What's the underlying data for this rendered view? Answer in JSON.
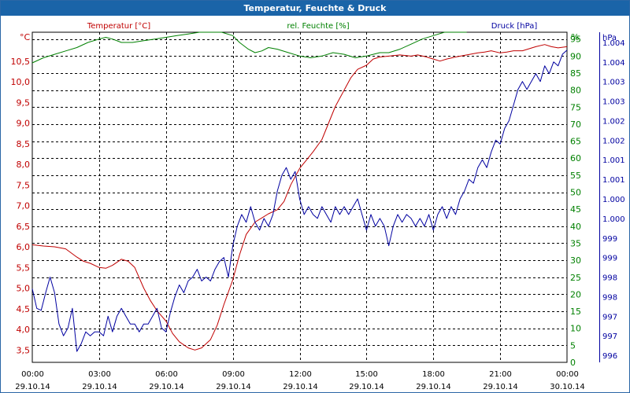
{
  "window": {
    "title": "Temperatur, Feuchte & Druck"
  },
  "chart_data": {
    "type": "line",
    "title": "Temperatur, Feuchte & Druck",
    "grid": true,
    "colors": {
      "temperature": "#c00000",
      "humidity": "#008000",
      "pressure": "#0000a0",
      "grid": "#000000",
      "title_bg": "#1a64a8"
    },
    "x_axis": {
      "ticks": [
        {
          "hours": 0,
          "time": "00:00",
          "date": "29.10.14"
        },
        {
          "hours": 3,
          "time": "03:00",
          "date": "29.10.14"
        },
        {
          "hours": 6,
          "time": "06:00",
          "date": "29.10.14"
        },
        {
          "hours": 9,
          "time": "09:00",
          "date": "29.10.14"
        },
        {
          "hours": 12,
          "time": "12:00",
          "date": "29.10.14"
        },
        {
          "hours": 15,
          "time": "15:00",
          "date": "29.10.14"
        },
        {
          "hours": 18,
          "time": "18:00",
          "date": "29.10.14"
        },
        {
          "hours": 21,
          "time": "21:00",
          "date": "29.10.14"
        },
        {
          "hours": 24,
          "time": "00:00",
          "date": "30.10.14"
        }
      ]
    },
    "axes": {
      "temperature": {
        "label": "Temperatur [°C]",
        "unit": "°C",
        "range": [
          3.2,
          11.2
        ],
        "ticks": [
          3.5,
          4.0,
          4.5,
          5.0,
          5.5,
          6.0,
          6.5,
          7.0,
          7.5,
          8.0,
          8.5,
          9.0,
          9.5,
          10.0,
          10.5
        ],
        "tick_labels": [
          "3,5",
          "4,0",
          "4,5",
          "5,0",
          "5,5",
          "6,0",
          "6,5",
          "7,0",
          "7,5",
          "8,0",
          "8,5",
          "9,0",
          "9,5",
          "10,0",
          "10,5"
        ]
      },
      "humidity": {
        "label": "rel. Feuchte [%]",
        "unit": "%",
        "range": [
          0,
          97
        ],
        "ticks": [
          0,
          5,
          10,
          15,
          20,
          25,
          30,
          35,
          40,
          45,
          50,
          55,
          60,
          65,
          70,
          75,
          80,
          85,
          90,
          95
        ],
        "tick_labels": [
          "0",
          "5",
          "10",
          "15",
          "20",
          "25",
          "30",
          "35",
          "40",
          "45",
          "50",
          "55",
          "60",
          "65",
          "70",
          "75",
          "80",
          "85",
          "90",
          "95"
        ]
      },
      "pressure": {
        "label": "Druck [hPa]",
        "unit": "hPa",
        "range": [
          995.82,
          1004.26
        ],
        "ticks": [
          996.0,
          996.5,
          997.0,
          997.5,
          998.0,
          998.5,
          999.0,
          999.5,
          1000.0,
          1000.5,
          1001.0,
          1001.5,
          1002.0,
          1002.5,
          1003.0,
          1003.5,
          1004.0
        ],
        "tick_labels": [
          "996",
          "997",
          "997",
          "998",
          "998",
          "999",
          "999",
          "1.000",
          "1.000",
          "1.001",
          "1.001",
          "1.002",
          "1.002",
          "1.003",
          "1.003",
          "1.004",
          "1.004"
        ]
      }
    },
    "series": [
      {
        "name": "Temperatur [°C]",
        "axis": "temperature",
        "points": [
          [
            0,
            6.05
          ],
          [
            0.5,
            6.02
          ],
          [
            1,
            6.0
          ],
          [
            1.5,
            5.95
          ],
          [
            2,
            5.75
          ],
          [
            2.3,
            5.65
          ],
          [
            2.6,
            5.6
          ],
          [
            3,
            5.5
          ],
          [
            3.3,
            5.48
          ],
          [
            3.6,
            5.55
          ],
          [
            4,
            5.7
          ],
          [
            4.3,
            5.65
          ],
          [
            4.6,
            5.5
          ],
          [
            5,
            5.0
          ],
          [
            5.3,
            4.7
          ],
          [
            5.6,
            4.45
          ],
          [
            6,
            4.2
          ],
          [
            6.3,
            3.9
          ],
          [
            6.6,
            3.7
          ],
          [
            7,
            3.55
          ],
          [
            7.3,
            3.5
          ],
          [
            7.6,
            3.55
          ],
          [
            8,
            3.75
          ],
          [
            8.3,
            4.1
          ],
          [
            8.6,
            4.6
          ],
          [
            9,
            5.2
          ],
          [
            9.3,
            5.8
          ],
          [
            9.6,
            6.3
          ],
          [
            10,
            6.6
          ],
          [
            10.3,
            6.7
          ],
          [
            10.6,
            6.8
          ],
          [
            11,
            6.9
          ],
          [
            11.3,
            7.1
          ],
          [
            11.6,
            7.5
          ],
          [
            12,
            7.9
          ],
          [
            12.3,
            8.1
          ],
          [
            12.6,
            8.3
          ],
          [
            13,
            8.6
          ],
          [
            13.3,
            9.0
          ],
          [
            13.6,
            9.4
          ],
          [
            14,
            9.8
          ],
          [
            14.3,
            10.1
          ],
          [
            14.6,
            10.3
          ],
          [
            15,
            10.4
          ],
          [
            15.3,
            10.55
          ],
          [
            15.6,
            10.6
          ],
          [
            16,
            10.62
          ],
          [
            16.5,
            10.65
          ],
          [
            17,
            10.62
          ],
          [
            17.3,
            10.65
          ],
          [
            17.7,
            10.6
          ],
          [
            18,
            10.55
          ],
          [
            18.3,
            10.5
          ],
          [
            18.6,
            10.55
          ],
          [
            19,
            10.6
          ],
          [
            19.5,
            10.65
          ],
          [
            20,
            10.7
          ],
          [
            20.3,
            10.72
          ],
          [
            20.6,
            10.75
          ],
          [
            21,
            10.7
          ],
          [
            21.3,
            10.72
          ],
          [
            21.6,
            10.75
          ],
          [
            22,
            10.75
          ],
          [
            22.3,
            10.8
          ],
          [
            22.6,
            10.85
          ],
          [
            23,
            10.9
          ],
          [
            23.3,
            10.85
          ],
          [
            23.6,
            10.82
          ],
          [
            24,
            10.85
          ]
        ]
      },
      {
        "name": "rel. Feuchte [%]",
        "axis": "humidity",
        "points": [
          [
            0,
            88
          ],
          [
            0.5,
            89.5
          ],
          [
            1,
            90.5
          ],
          [
            1.5,
            91.5
          ],
          [
            2,
            92.5
          ],
          [
            2.5,
            94
          ],
          [
            3,
            95
          ],
          [
            3.3,
            95.5
          ],
          [
            3.6,
            95
          ],
          [
            4,
            94
          ],
          [
            4.5,
            94
          ],
          [
            5,
            94.5
          ],
          [
            5.5,
            95
          ],
          [
            6,
            95.5
          ],
          [
            6.5,
            96
          ],
          [
            7,
            96.5
          ],
          [
            7.5,
            97
          ],
          [
            8,
            97
          ],
          [
            8.5,
            97
          ],
          [
            9,
            96
          ],
          [
            9.3,
            94
          ],
          [
            9.7,
            92
          ],
          [
            10,
            91
          ],
          [
            10.3,
            91.5
          ],
          [
            10.6,
            92.5
          ],
          [
            11,
            92
          ],
          [
            11.5,
            91
          ],
          [
            12,
            90
          ],
          [
            12.5,
            89.5
          ],
          [
            13,
            90
          ],
          [
            13.5,
            91
          ],
          [
            14,
            90.5
          ],
          [
            14.5,
            89.5
          ],
          [
            15,
            90
          ],
          [
            15.3,
            90.5
          ],
          [
            15.6,
            91
          ],
          [
            16,
            91
          ],
          [
            16.5,
            92
          ],
          [
            17,
            93.5
          ],
          [
            17.5,
            95
          ],
          [
            18,
            96
          ],
          [
            18.5,
            97
          ],
          [
            19,
            97
          ],
          [
            19.5,
            97
          ]
        ]
      },
      {
        "name": "Druck [hPa]",
        "axis": "pressure",
        "points": [
          [
            0,
            997.7
          ],
          [
            0.2,
            997.2
          ],
          [
            0.4,
            997.15
          ],
          [
            0.6,
            997.6
          ],
          [
            0.8,
            998.0
          ],
          [
            1.0,
            997.6
          ],
          [
            1.2,
            996.8
          ],
          [
            1.4,
            996.5
          ],
          [
            1.6,
            996.7
          ],
          [
            1.8,
            997.2
          ],
          [
            2.0,
            996.1
          ],
          [
            2.2,
            996.3
          ],
          [
            2.4,
            996.6
          ],
          [
            2.6,
            996.5
          ],
          [
            2.8,
            996.6
          ],
          [
            3.0,
            996.6
          ],
          [
            3.2,
            996.5
          ],
          [
            3.4,
            997.0
          ],
          [
            3.6,
            996.6
          ],
          [
            3.8,
            997.0
          ],
          [
            4.0,
            997.2
          ],
          [
            4.2,
            997.0
          ],
          [
            4.4,
            996.8
          ],
          [
            4.6,
            996.8
          ],
          [
            4.8,
            996.6
          ],
          [
            5.0,
            996.8
          ],
          [
            5.2,
            996.8
          ],
          [
            5.4,
            997.0
          ],
          [
            5.6,
            997.2
          ],
          [
            5.8,
            996.7
          ],
          [
            6.0,
            996.6
          ],
          [
            6.2,
            997.1
          ],
          [
            6.4,
            997.5
          ],
          [
            6.6,
            997.8
          ],
          [
            6.8,
            997.6
          ],
          [
            7.0,
            997.9
          ],
          [
            7.2,
            998.0
          ],
          [
            7.4,
            998.2
          ],
          [
            7.6,
            997.9
          ],
          [
            7.8,
            998.0
          ],
          [
            8.0,
            997.9
          ],
          [
            8.2,
            998.2
          ],
          [
            8.4,
            998.4
          ],
          [
            8.6,
            998.5
          ],
          [
            8.8,
            998.0
          ],
          [
            9.0,
            998.8
          ],
          [
            9.2,
            999.3
          ],
          [
            9.4,
            999.6
          ],
          [
            9.6,
            999.4
          ],
          [
            9.8,
            999.8
          ],
          [
            10.0,
            999.4
          ],
          [
            10.2,
            999.2
          ],
          [
            10.4,
            999.5
          ],
          [
            10.6,
            999.3
          ],
          [
            10.8,
            999.6
          ],
          [
            11.0,
            1000.2
          ],
          [
            11.2,
            1000.6
          ],
          [
            11.4,
            1000.8
          ],
          [
            11.6,
            1000.5
          ],
          [
            11.8,
            1000.7
          ],
          [
            12.0,
            1000.0
          ],
          [
            12.2,
            999.6
          ],
          [
            12.4,
            999.8
          ],
          [
            12.6,
            999.6
          ],
          [
            12.8,
            999.5
          ],
          [
            13.0,
            999.8
          ],
          [
            13.2,
            999.6
          ],
          [
            13.4,
            999.4
          ],
          [
            13.6,
            999.8
          ],
          [
            13.8,
            999.6
          ],
          [
            14.0,
            999.8
          ],
          [
            14.2,
            999.6
          ],
          [
            14.4,
            999.8
          ],
          [
            14.6,
            1000.0
          ],
          [
            14.8,
            999.6
          ],
          [
            15.0,
            999.2
          ],
          [
            15.2,
            999.6
          ],
          [
            15.4,
            999.3
          ],
          [
            15.6,
            999.5
          ],
          [
            15.8,
            999.3
          ],
          [
            16.0,
            998.8
          ],
          [
            16.2,
            999.3
          ],
          [
            16.4,
            999.6
          ],
          [
            16.6,
            999.4
          ],
          [
            16.8,
            999.6
          ],
          [
            17.0,
            999.5
          ],
          [
            17.2,
            999.3
          ],
          [
            17.4,
            999.5
          ],
          [
            17.6,
            999.3
          ],
          [
            17.8,
            999.6
          ],
          [
            18.0,
            999.2
          ],
          [
            18.2,
            999.6
          ],
          [
            18.4,
            999.8
          ],
          [
            18.6,
            999.5
          ],
          [
            18.8,
            999.8
          ],
          [
            19.0,
            999.6
          ],
          [
            19.2,
            1000.0
          ],
          [
            19.4,
            1000.2
          ],
          [
            19.6,
            1000.5
          ],
          [
            19.8,
            1000.4
          ],
          [
            20.0,
            1000.8
          ],
          [
            20.2,
            1001.0
          ],
          [
            20.4,
            1000.8
          ],
          [
            20.6,
            1001.2
          ],
          [
            20.8,
            1001.5
          ],
          [
            21.0,
            1001.4
          ],
          [
            21.2,
            1001.8
          ],
          [
            21.4,
            1002.0
          ],
          [
            21.6,
            1002.4
          ],
          [
            21.8,
            1002.8
          ],
          [
            22.0,
            1003.0
          ],
          [
            22.2,
            1002.8
          ],
          [
            22.4,
            1003.0
          ],
          [
            22.6,
            1003.2
          ],
          [
            22.8,
            1003.0
          ],
          [
            23.0,
            1003.4
          ],
          [
            23.2,
            1003.2
          ],
          [
            23.4,
            1003.5
          ],
          [
            23.6,
            1003.4
          ],
          [
            23.8,
            1003.7
          ],
          [
            24.0,
            1003.8
          ]
        ]
      }
    ]
  }
}
